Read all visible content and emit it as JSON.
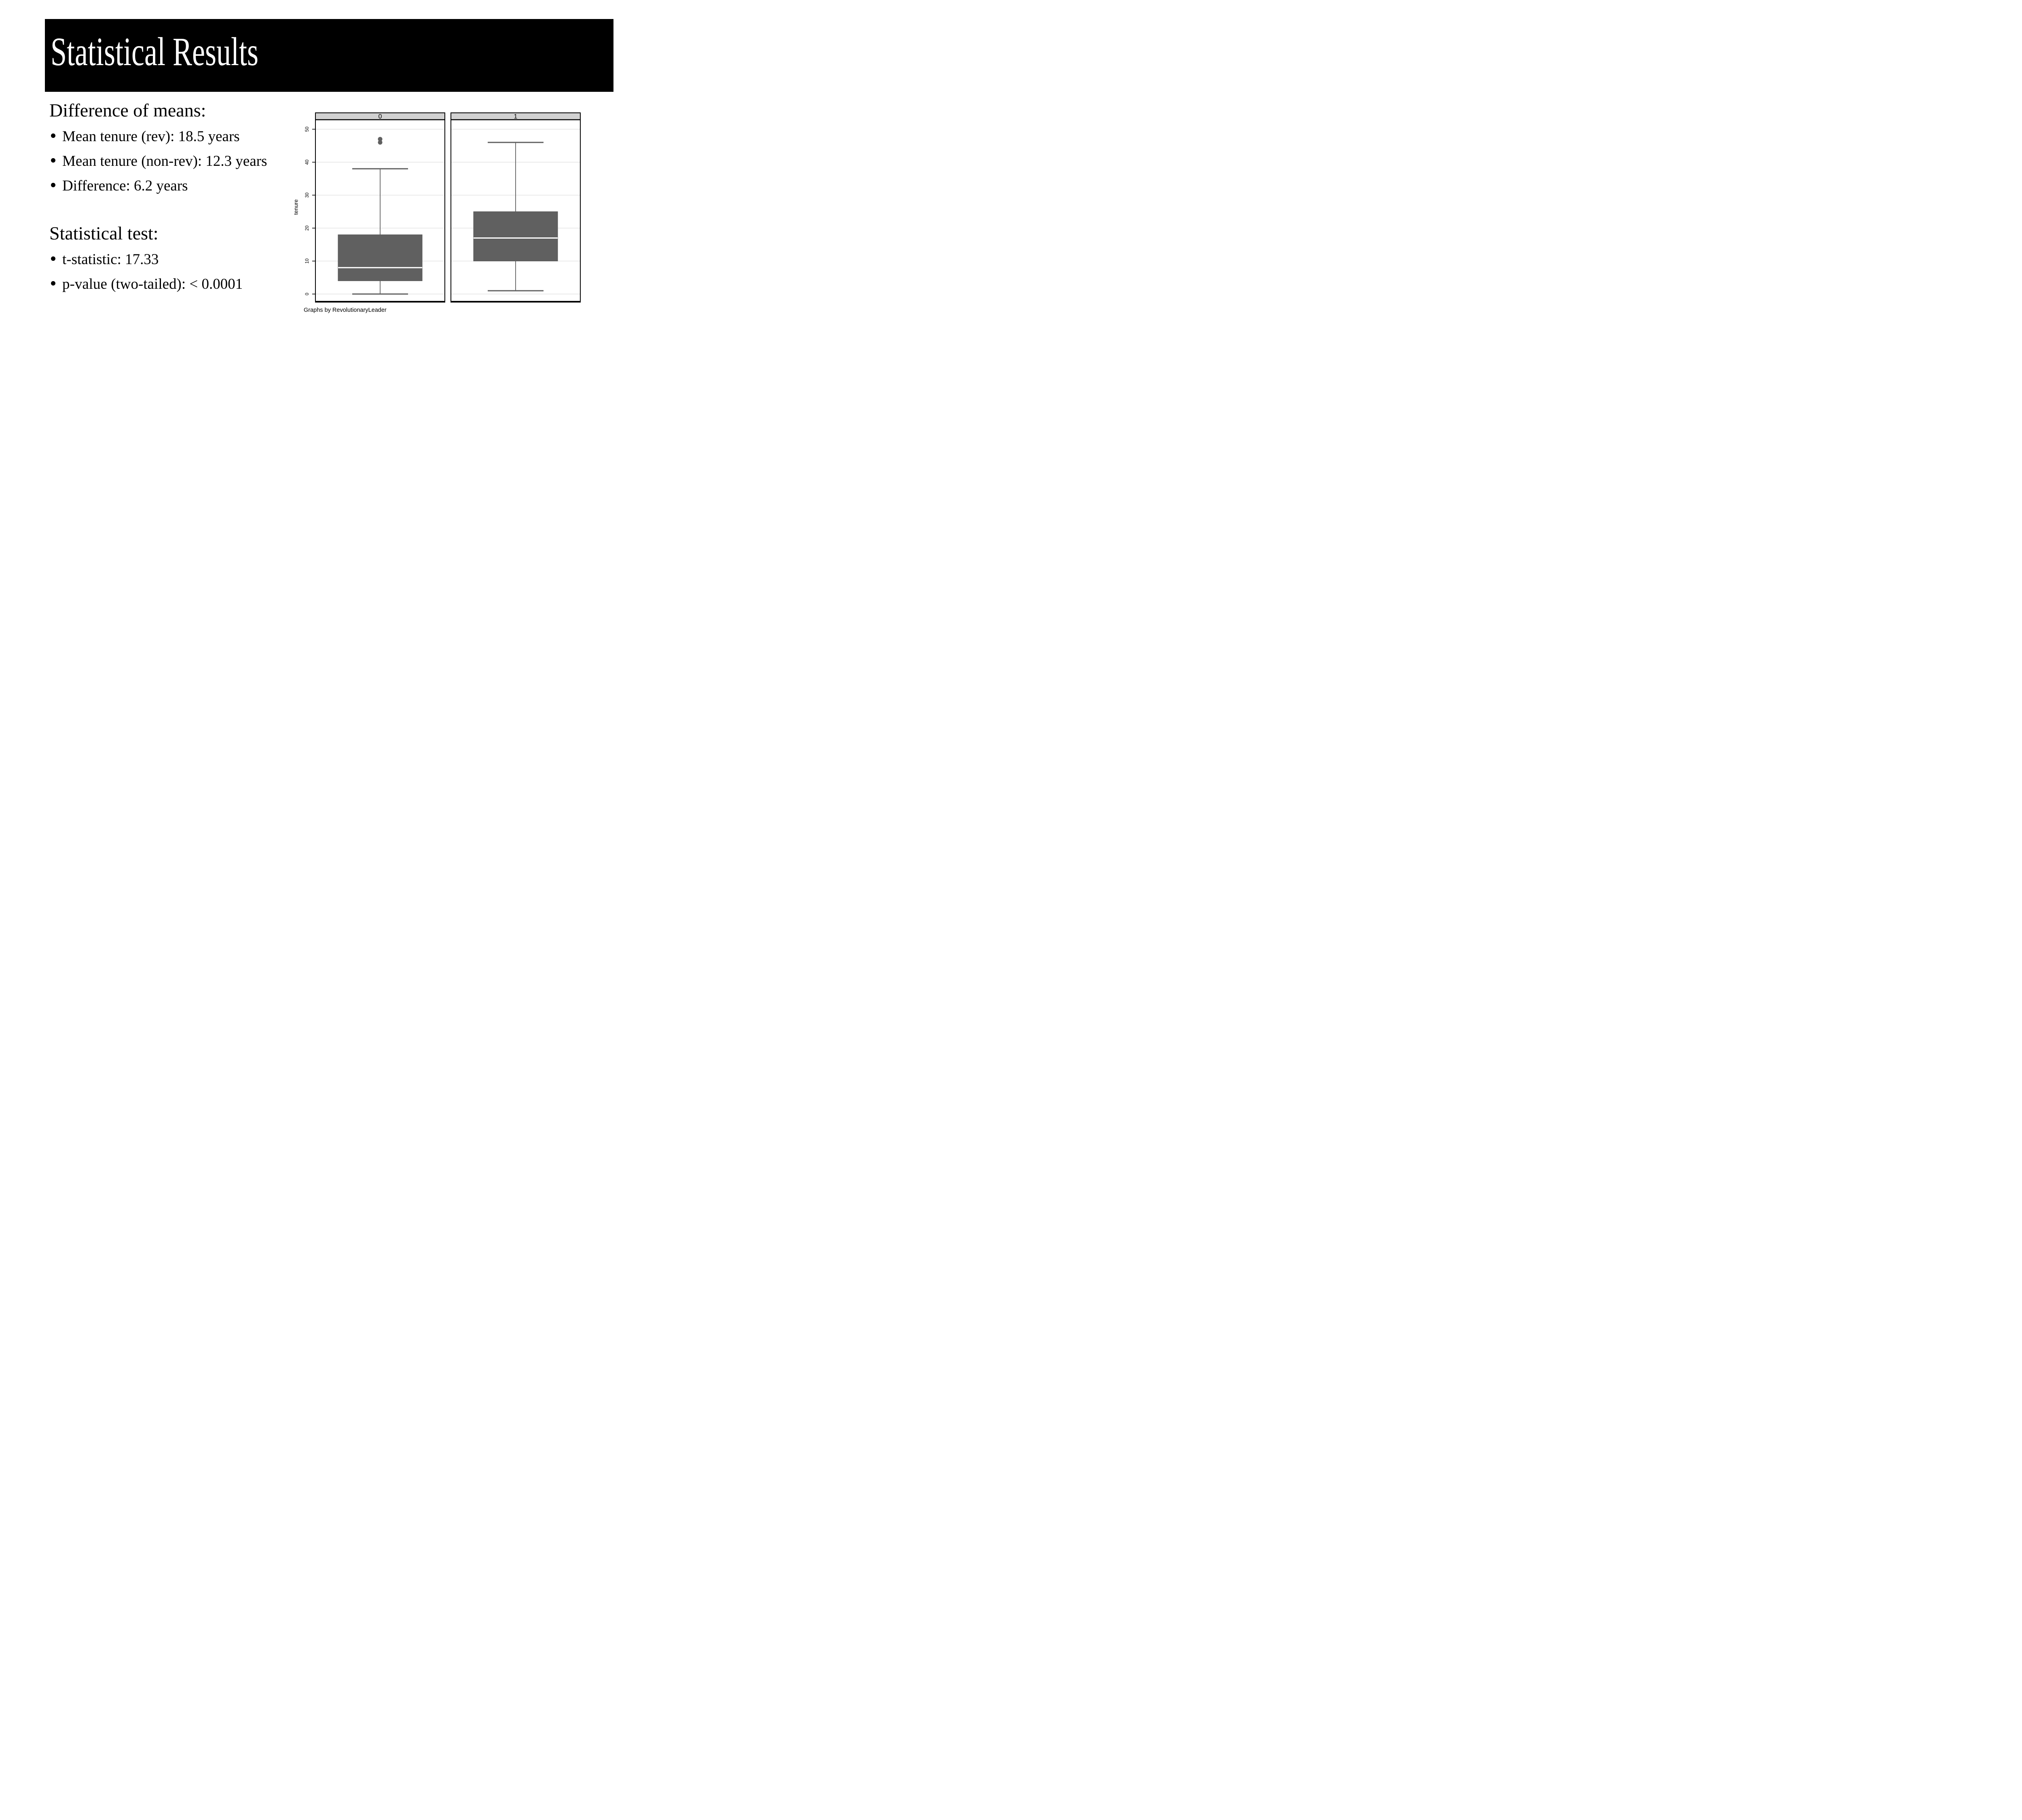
{
  "slide": {
    "title": "Statistical Results",
    "sections": [
      {
        "heading": "Difference of means:",
        "bullets": [
          "Mean tenure (rev): 18.5 years",
          "Mean tenure (non-rev): 12.3 years",
          "Difference: 6.2 years"
        ]
      },
      {
        "heading": "Statistical test:",
        "bullets": [
          "t-statistic: 17.33",
          "p-value (two-tailed): < 0.0001"
        ]
      }
    ]
  },
  "chart_data": {
    "type": "boxplot",
    "title": "",
    "ylabel": "tenure",
    "xlabel": "",
    "caption": "Graphs by RevolutionaryLeader",
    "ylim": [
      -2.3,
      52.8
    ],
    "yticks": [
      0,
      10,
      20,
      30,
      40,
      50
    ],
    "grid": true,
    "tick_label_angle": 90,
    "panels": [
      {
        "label": "0",
        "whisker_low": 0,
        "q1": 4,
        "median": 8,
        "q3": 18,
        "whisker_high": 38,
        "outliers": [
          46,
          47
        ]
      },
      {
        "label": "1",
        "whisker_low": 1,
        "q1": 10,
        "median": 17,
        "q3": 25,
        "whisker_high": 46,
        "outliers": []
      }
    ],
    "colors": {
      "box_fill": "#606060",
      "box_stroke": "#565656",
      "median": "#ffffff",
      "whisker": "#606060",
      "outlier": "#606060",
      "header_fill": "#d1d1d1",
      "gridline": "#e4e4e4",
      "border": "#000000",
      "background": "#ffffff"
    }
  }
}
